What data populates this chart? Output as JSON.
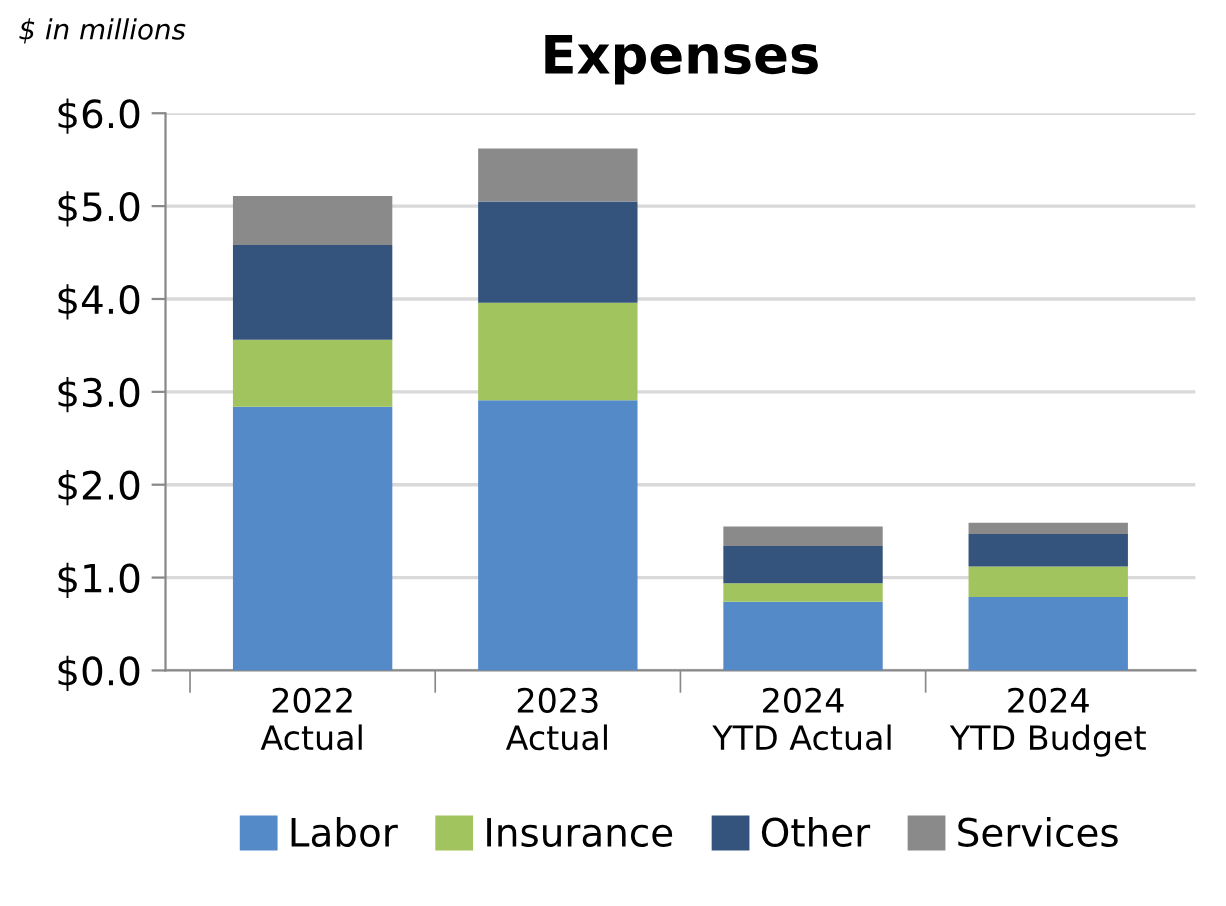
{
  "chart_data": {
    "type": "bar",
    "title": "Expenses",
    "ylabel": "$ in millions",
    "categories": [
      "2022\nActual",
      "2023\nActual",
      "2024\nYTD Actual",
      "2024\nYTD Budget"
    ],
    "stacked": true,
    "series": [
      {
        "name": "Labor",
        "color": "#558ac9",
        "values": [
          2.84,
          2.91,
          0.74,
          0.79
        ]
      },
      {
        "name": "Insurance",
        "color": "#a2c45f",
        "values": [
          0.72,
          1.05,
          0.2,
          0.33
        ]
      },
      {
        "name": "Other",
        "color": "#34547e",
        "values": [
          1.02,
          1.09,
          0.4,
          0.35
        ]
      },
      {
        "name": "Services",
        "color": "#8a8a8a",
        "values": [
          0.53,
          0.57,
          0.21,
          0.12
        ]
      }
    ],
    "ylim": [
      0,
      6
    ],
    "yticks": [
      {
        "value": 0,
        "label": "$0.0"
      },
      {
        "value": 1,
        "label": "$1.0"
      },
      {
        "value": 2,
        "label": "$2.0"
      },
      {
        "value": 3,
        "label": "$3.0"
      },
      {
        "value": 4,
        "label": "$4.0"
      },
      {
        "value": 5,
        "label": "$5.0"
      },
      {
        "value": 6,
        "label": "$6.0"
      }
    ],
    "grid": "y",
    "legend": "bottom"
  }
}
